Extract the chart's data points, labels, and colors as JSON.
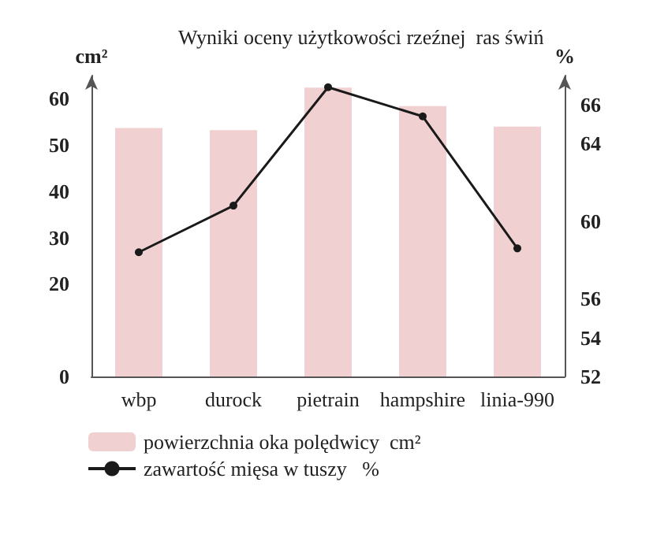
{
  "chart_data": {
    "type": "bar",
    "title": "Wyniki oceny użytkowości rzeźnej  ras świń",
    "categories": [
      "wbp",
      "durock",
      "pietrain",
      "hampshire",
      "linia-990"
    ],
    "series": [
      {
        "name": "powierzchnia oka polędwicy  cm²",
        "color": "#f0d0d0",
        "values": [
          53.7,
          53.2,
          62.4,
          58.4,
          54
        ]
      },
      {
        "name": "zawartość mięsa w tuszy   %",
        "type": "line",
        "axis": "y2",
        "color": "#1a1a1a",
        "values": [
          58.4,
          60.8,
          66.9,
          65.4,
          58.6
        ]
      }
    ],
    "ylabel": "cm²",
    "y2label": "%",
    "ylim": [
      0,
      65
    ],
    "yticks": [
      0,
      20,
      30,
      40,
      50,
      60
    ],
    "y2lim": [
      52,
      67.5
    ],
    "y2ticks": [
      52,
      54,
      56,
      60,
      64,
      66
    ],
    "grid": false,
    "legend": "bottom",
    "marker": "circle",
    "line_style": "solid"
  }
}
